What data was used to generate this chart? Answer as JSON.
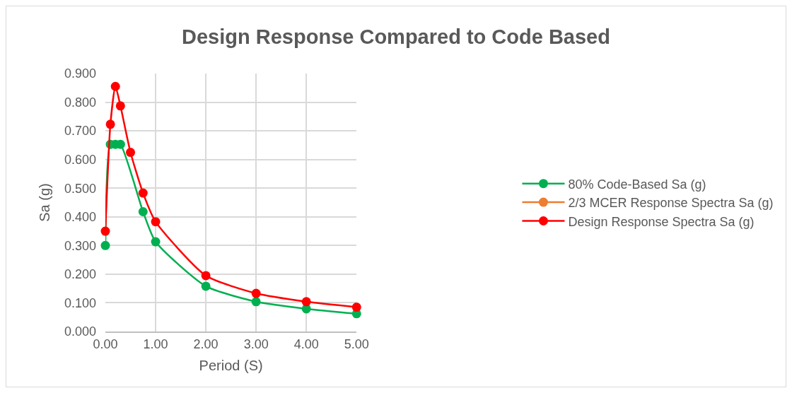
{
  "chart_data": {
    "type": "line",
    "title": "Design Response Compared to Code Based",
    "xlabel": "Period (S)",
    "ylabel": "Sa (g)",
    "x": [
      0,
      0.1,
      0.2,
      0.3,
      0.5,
      0.75,
      1,
      2,
      3,
      4,
      5
    ],
    "series": [
      {
        "name": "80% Code-Based Sa (g)",
        "color": "#00b050",
        "values": [
          0.3,
          0.653,
          0.653,
          0.653,
          null,
          0.418,
          0.313,
          0.158,
          0.104,
          0.079,
          0.062
        ]
      },
      {
        "name": "2/3 MCER Response Spectra Sa (g)",
        "color": "#ed7d31",
        "values": [
          null,
          null,
          null,
          null,
          null,
          null,
          null,
          null,
          null,
          null,
          null
        ]
      },
      {
        "name": "Design Response Spectra Sa (g)",
        "color": "#ff0000",
        "values": [
          0.35,
          0.723,
          0.855,
          0.787,
          0.625,
          0.483,
          0.383,
          0.195,
          0.133,
          0.104,
          0.085
        ]
      }
    ],
    "xlim": [
      0,
      5
    ],
    "xticks": [
      {
        "value": 0,
        "label": "0.00"
      },
      {
        "value": 1,
        "label": "1.00"
      },
      {
        "value": 2,
        "label": "2.00"
      },
      {
        "value": 3,
        "label": "3.00"
      },
      {
        "value": 4,
        "label": "4.00"
      },
      {
        "value": 5,
        "label": "5.00"
      }
    ],
    "ylim": [
      0,
      0.9
    ],
    "yticks": [
      {
        "value": 0,
        "label": "0.000"
      },
      {
        "value": 0.1,
        "label": "0.100"
      },
      {
        "value": 0.2,
        "label": "0.200"
      },
      {
        "value": 0.3,
        "label": "0.300"
      },
      {
        "value": 0.4,
        "label": "0.400"
      },
      {
        "value": 0.5,
        "label": "0.500"
      },
      {
        "value": 0.6,
        "label": "0.600"
      },
      {
        "value": 0.7,
        "label": "0.700"
      },
      {
        "value": 0.8,
        "label": "0.800"
      },
      {
        "value": 0.9,
        "label": "0.900"
      }
    ],
    "grid": true,
    "legend": "right",
    "marker": "circle",
    "line_style": "solid"
  }
}
